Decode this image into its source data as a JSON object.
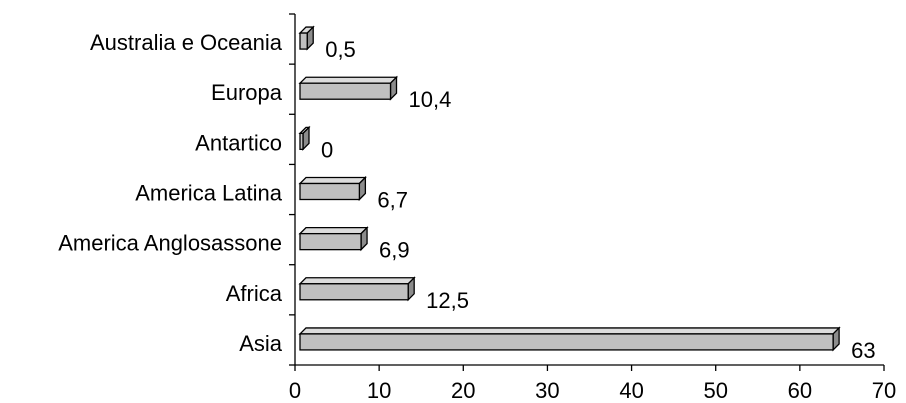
{
  "chart_data": {
    "type": "bar",
    "orientation": "horizontal",
    "style": "3d",
    "categories": [
      "Australia e Oceania",
      "Europa",
      "Antartico",
      "America Latina",
      "America Anglosassone",
      "Africa",
      "Asia"
    ],
    "values": [
      0.5,
      10.4,
      0,
      6.7,
      6.9,
      12.5,
      63
    ],
    "value_labels": [
      "0,5",
      "10,4",
      "0",
      "6,7",
      "6,9",
      "12,5",
      "63"
    ],
    "xlim": [
      0,
      70
    ],
    "xticks": [
      0,
      10,
      20,
      30,
      40,
      50,
      60,
      70
    ],
    "xtick_labels": [
      "0",
      "10",
      "20",
      "30",
      "40",
      "50",
      "60",
      "70"
    ],
    "title": "",
    "xlabel": "",
    "ylabel": "",
    "grid": false,
    "legend": "none",
    "colors": {
      "bar_front": "#c0c0c0",
      "bar_top": "#dcdcdc",
      "bar_side": "#8c8c8c",
      "outline": "#000000"
    }
  }
}
